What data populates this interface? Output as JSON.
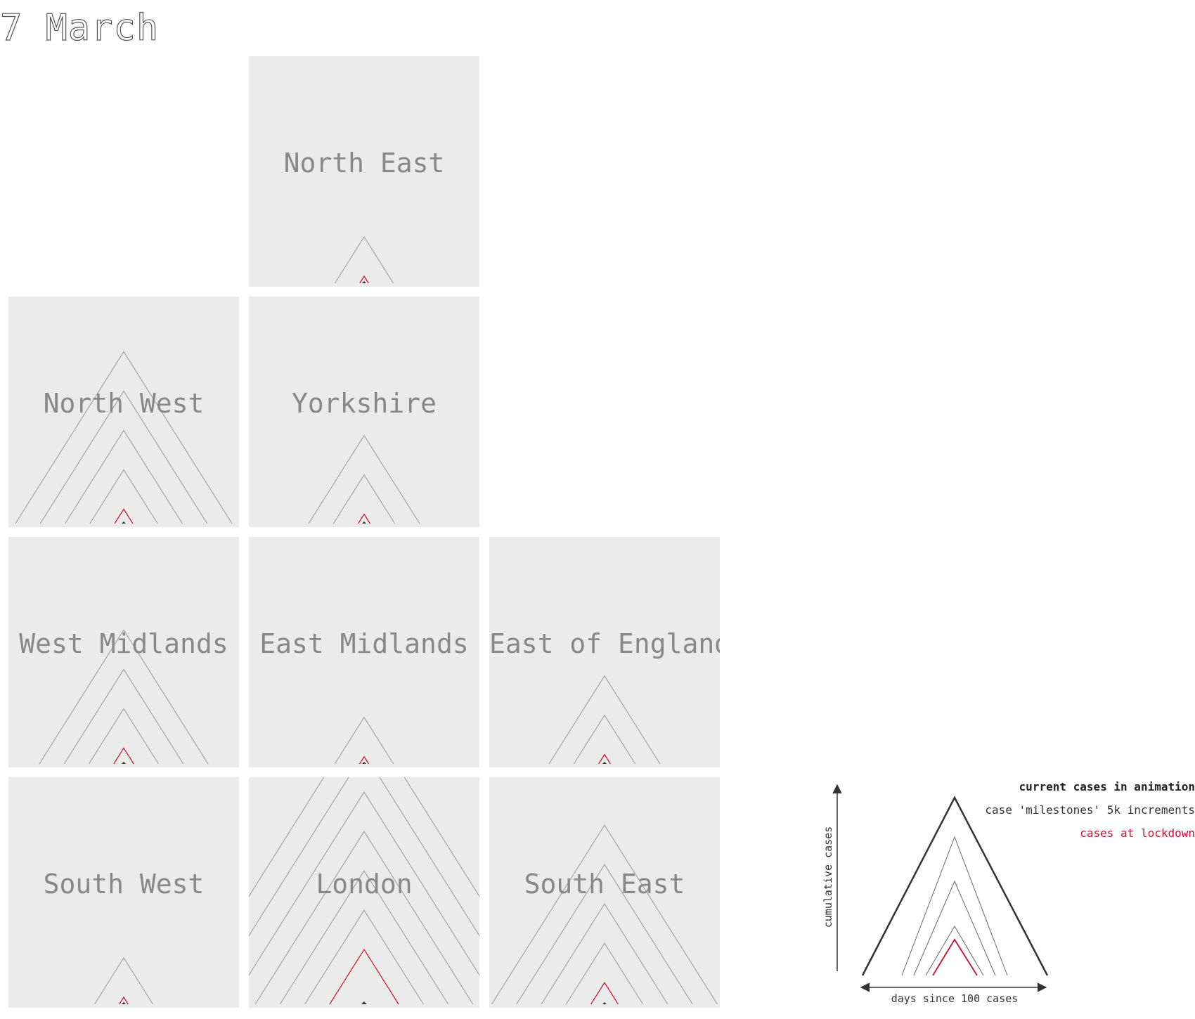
{
  "date_label": "7 March",
  "colors": {
    "tile_bg": "#ebebeb",
    "milestone": "#999999",
    "lockdown": "#c8102e",
    "current": "#333333",
    "label": "#888888"
  },
  "legend": {
    "current_label": "current cases in animation",
    "milestones_label": "case 'milestones' 5k increments",
    "lockdown_label": "cases at lockdown",
    "y_axis_label": "cumulative cases",
    "x_axis_label": "days since 100 cases"
  },
  "chart_data": {
    "type": "triangle-glyph tile map",
    "milestone_step": 5000,
    "regions": [
      {
        "name": "North East",
        "col": 1,
        "row": 0,
        "milestones": 1,
        "lockdown_cases": 300,
        "current_cases": 40
      },
      {
        "name": "North West",
        "col": 0,
        "row": 1,
        "milestones": 4,
        "lockdown_cases": 1000,
        "current_cases": 60
      },
      {
        "name": "Yorkshire",
        "col": 1,
        "row": 1,
        "milestones": 2,
        "lockdown_cases": 650,
        "current_cases": 50
      },
      {
        "name": "West Midlands",
        "col": 0,
        "row": 2,
        "milestones": 3,
        "lockdown_cases": 1100,
        "current_cases": 60
      },
      {
        "name": "East Midlands",
        "col": 1,
        "row": 2,
        "milestones": 1,
        "lockdown_cases": 500,
        "current_cases": 40
      },
      {
        "name": "East of England",
        "col": 2,
        "row": 2,
        "milestones": 2,
        "lockdown_cases": 650,
        "current_cases": 40
      },
      {
        "name": "South West",
        "col": 0,
        "row": 3,
        "milestones": 1,
        "lockdown_cases": 450,
        "current_cases": 30
      },
      {
        "name": "London",
        "col": 1,
        "row": 3,
        "milestones": 6,
        "lockdown_cases": 3800,
        "current_cases": 80
      },
      {
        "name": "South East",
        "col": 2,
        "row": 3,
        "milestones": 4,
        "lockdown_cases": 1500,
        "current_cases": 60
      }
    ]
  }
}
